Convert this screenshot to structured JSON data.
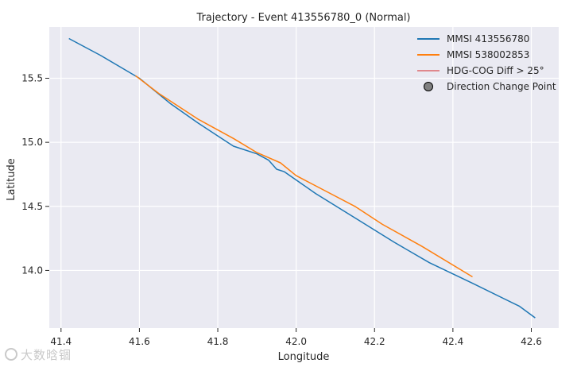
{
  "chart_data": {
    "type": "line",
    "title": "Trajectory - Event 413556780_0 (Normal)",
    "xlabel": "Longitude",
    "ylabel": "Latitude",
    "xlim": [
      41.37,
      42.67
    ],
    "ylim": [
      13.55,
      15.9
    ],
    "xticks": [
      41.4,
      41.6,
      41.8,
      42.0,
      42.2,
      42.4,
      42.6
    ],
    "yticks": [
      14.0,
      14.5,
      15.0,
      15.5
    ],
    "xtick_labels": [
      "41.4",
      "41.6",
      "41.8",
      "42.0",
      "42.2",
      "42.4",
      "42.6"
    ],
    "ytick_labels": [
      "14.0",
      "14.5",
      "15.0",
      "15.5"
    ],
    "grid": true,
    "background": "#eaeaf2",
    "legend_position": "top-right",
    "series": [
      {
        "name": "MMSI 413556780",
        "color": "#1f77b4",
        "x": [
          41.42,
          41.5,
          41.6,
          41.68,
          41.75,
          41.8,
          41.84,
          41.9,
          41.93,
          41.95,
          41.97,
          42.05,
          42.15,
          42.25,
          42.34,
          42.45,
          42.57,
          42.61
        ],
        "y": [
          15.81,
          15.68,
          15.5,
          15.3,
          15.15,
          15.05,
          14.97,
          14.91,
          14.86,
          14.79,
          14.77,
          14.6,
          14.41,
          14.22,
          14.06,
          13.9,
          13.72,
          13.63
        ]
      },
      {
        "name": "MMSI 538002853",
        "color": "#ff7f0e",
        "x": [
          41.59,
          41.65,
          41.75,
          41.84,
          41.9,
          41.96,
          42.0,
          42.05,
          42.15,
          42.22,
          42.32,
          42.45
        ],
        "y": [
          15.52,
          15.38,
          15.18,
          15.03,
          14.92,
          14.84,
          14.74,
          14.66,
          14.5,
          14.36,
          14.19,
          13.95
        ]
      }
    ],
    "legend": [
      {
        "label": "MMSI 413556780",
        "kind": "line",
        "color": "#1f77b4"
      },
      {
        "label": "MMSI 538002853",
        "kind": "line",
        "color": "#ff7f0e"
      },
      {
        "label": "HDG-COG Diff > 25°",
        "kind": "thin-line",
        "color": "#d62728"
      },
      {
        "label": "Direction Change Point",
        "kind": "marker",
        "color": "#808080"
      }
    ]
  },
  "watermark": "大数晗锢"
}
